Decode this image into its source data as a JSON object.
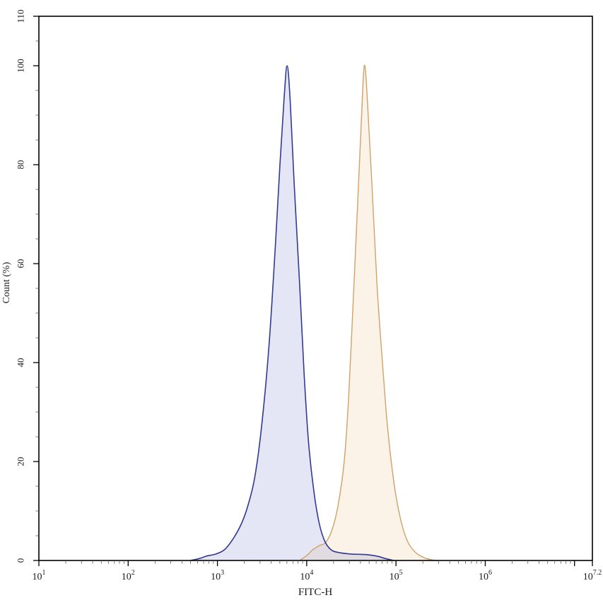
{
  "figure": {
    "background": "#ffffff",
    "title": "",
    "legend": "none"
  },
  "chart_data": {
    "type": "area",
    "subtype": "flow-cytometry-histogram-overlay",
    "grid": false,
    "x_axis": {
      "label": "FITC-H",
      "scale": "log10",
      "range_exponents": [
        1,
        7.2
      ],
      "labeled_tick_exponents": [
        1,
        2,
        3,
        4,
        5,
        6,
        7.2
      ],
      "unlabeled_major_tick_exponents": [
        7
      ],
      "tick_base": "10",
      "minor_ticks": "log sub-decade marks at 2-9 within each decade"
    },
    "y_axis": {
      "label": "Count (%)",
      "range": [
        0,
        110
      ],
      "major_ticks": [
        0,
        20,
        40,
        60,
        80,
        100,
        110
      ],
      "minor_tick_step": 5,
      "tick_label_rotation_deg": -90
    },
    "series": [
      {
        "name": "orange-histogram",
        "stroke": "#cfa26a",
        "fill_base": "#e0a050",
        "fill_opacity": 0.13,
        "stroke_width": 1.4,
        "peak_percent": 100,
        "peak_exponent": 4.645,
        "peak_x_value": 44000,
        "points_exponent_percent": [
          [
            3.92,
            0
          ],
          [
            4.0,
            1
          ],
          [
            4.07,
            2.2
          ],
          [
            4.14,
            3
          ],
          [
            4.21,
            3.6
          ],
          [
            4.28,
            6
          ],
          [
            4.35,
            11
          ],
          [
            4.42,
            20
          ],
          [
            4.47,
            33
          ],
          [
            4.52,
            52
          ],
          [
            4.57,
            72
          ],
          [
            4.61,
            88
          ],
          [
            4.645,
            100
          ],
          [
            4.68,
            93
          ],
          [
            4.73,
            76
          ],
          [
            4.79,
            55
          ],
          [
            4.84,
            42
          ],
          [
            4.89,
            30
          ],
          [
            4.94,
            21
          ],
          [
            5.0,
            13
          ],
          [
            5.07,
            7
          ],
          [
            5.14,
            3.5
          ],
          [
            5.22,
            1.6
          ],
          [
            5.31,
            0.6
          ],
          [
            5.4,
            0.15
          ],
          [
            5.48,
            0
          ]
        ]
      },
      {
        "name": "blue-histogram",
        "stroke": "#333a8f",
        "fill_base": "#5a64c8",
        "fill_opacity": 0.16,
        "stroke_width": 1.6,
        "peak_percent": 100,
        "peak_exponent": 3.78,
        "peak_x_value": 6000,
        "points_exponent_percent": [
          [
            2.7,
            0
          ],
          [
            2.8,
            0.4
          ],
          [
            2.88,
            0.9
          ],
          [
            2.98,
            1.3
          ],
          [
            3.08,
            2.2
          ],
          [
            3.18,
            4.5
          ],
          [
            3.27,
            7.5
          ],
          [
            3.34,
            11
          ],
          [
            3.42,
            17
          ],
          [
            3.5,
            28
          ],
          [
            3.58,
            44
          ],
          [
            3.65,
            64
          ],
          [
            3.7,
            80
          ],
          [
            3.745,
            93
          ],
          [
            3.78,
            100
          ],
          [
            3.815,
            93
          ],
          [
            3.86,
            76
          ],
          [
            3.92,
            56
          ],
          [
            3.97,
            38
          ],
          [
            4.02,
            24
          ],
          [
            4.08,
            14
          ],
          [
            4.14,
            7.5
          ],
          [
            4.2,
            4
          ],
          [
            4.27,
            2.2
          ],
          [
            4.36,
            1.6
          ],
          [
            4.5,
            1.3
          ],
          [
            4.65,
            1.2
          ],
          [
            4.78,
            0.9
          ],
          [
            4.88,
            0.4
          ],
          [
            4.97,
            0
          ]
        ]
      }
    ],
    "frame_color": "#000000",
    "tick_color": "#000000",
    "minor_tick_color": "#555555"
  }
}
